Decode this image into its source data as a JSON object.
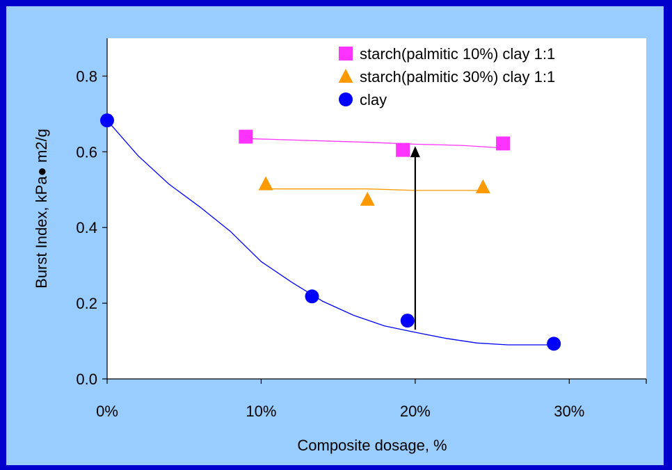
{
  "chart_data": {
    "type": "scatter",
    "title": "",
    "xlabel": "Composite dosage, %",
    "ylabel": "Burst Index, kPa● m2/g",
    "xlim": [
      0,
      0.35
    ],
    "ylim": [
      0,
      0.9
    ],
    "x_ticks": [
      0,
      0.1,
      0.2,
      0.3
    ],
    "x_tick_labels": [
      "0%",
      "10%",
      "20%",
      "30%"
    ],
    "y_ticks": [
      0,
      0.2,
      0.4,
      0.6,
      0.8
    ],
    "y_tick_labels": [
      "0.0",
      "0.2",
      "0.4",
      "0.6",
      "0.8"
    ],
    "grid": false,
    "legend_position": "top-right",
    "series": [
      {
        "name": "starch(palmitic 10%) clay 1:1",
        "marker": "square",
        "color": "#ff33ff",
        "points": [
          [
            0.09,
            0.64
          ],
          [
            0.192,
            0.605
          ],
          [
            0.257,
            0.622
          ]
        ],
        "trend": [
          [
            0.09,
            0.635
          ],
          [
            0.13,
            0.63
          ],
          [
            0.17,
            0.625
          ],
          [
            0.2,
            0.62
          ],
          [
            0.23,
            0.617
          ],
          [
            0.257,
            0.61
          ]
        ]
      },
      {
        "name": "starch(palmitic 30%) clay 1:1",
        "marker": "triangle",
        "color": "#ff9900",
        "points": [
          [
            0.103,
            0.515
          ],
          [
            0.169,
            0.474
          ],
          [
            0.244,
            0.507
          ]
        ],
        "trend": [
          [
            0.103,
            0.502
          ],
          [
            0.169,
            0.502
          ],
          [
            0.2,
            0.498
          ],
          [
            0.244,
            0.498
          ]
        ]
      },
      {
        "name": "clay",
        "marker": "circle",
        "color": "#0000ff",
        "points": [
          [
            0,
            0.683
          ],
          [
            0.133,
            0.218
          ],
          [
            0.195,
            0.154
          ],
          [
            0.29,
            0.093
          ]
        ],
        "trend": [
          [
            0,
            0.683
          ],
          [
            0.02,
            0.59
          ],
          [
            0.04,
            0.515
          ],
          [
            0.06,
            0.455
          ],
          [
            0.08,
            0.39
          ],
          [
            0.1,
            0.31
          ],
          [
            0.12,
            0.255
          ],
          [
            0.14,
            0.205
          ],
          [
            0.16,
            0.168
          ],
          [
            0.18,
            0.14
          ],
          [
            0.2,
            0.123
          ],
          [
            0.22,
            0.107
          ],
          [
            0.24,
            0.095
          ],
          [
            0.26,
            0.09
          ],
          [
            0.29,
            0.09
          ]
        ]
      }
    ],
    "annotations": [
      {
        "type": "arrow",
        "from": [
          0.2,
          0.13
        ],
        "to": [
          0.2,
          0.615
        ],
        "color": "#000000"
      }
    ]
  }
}
